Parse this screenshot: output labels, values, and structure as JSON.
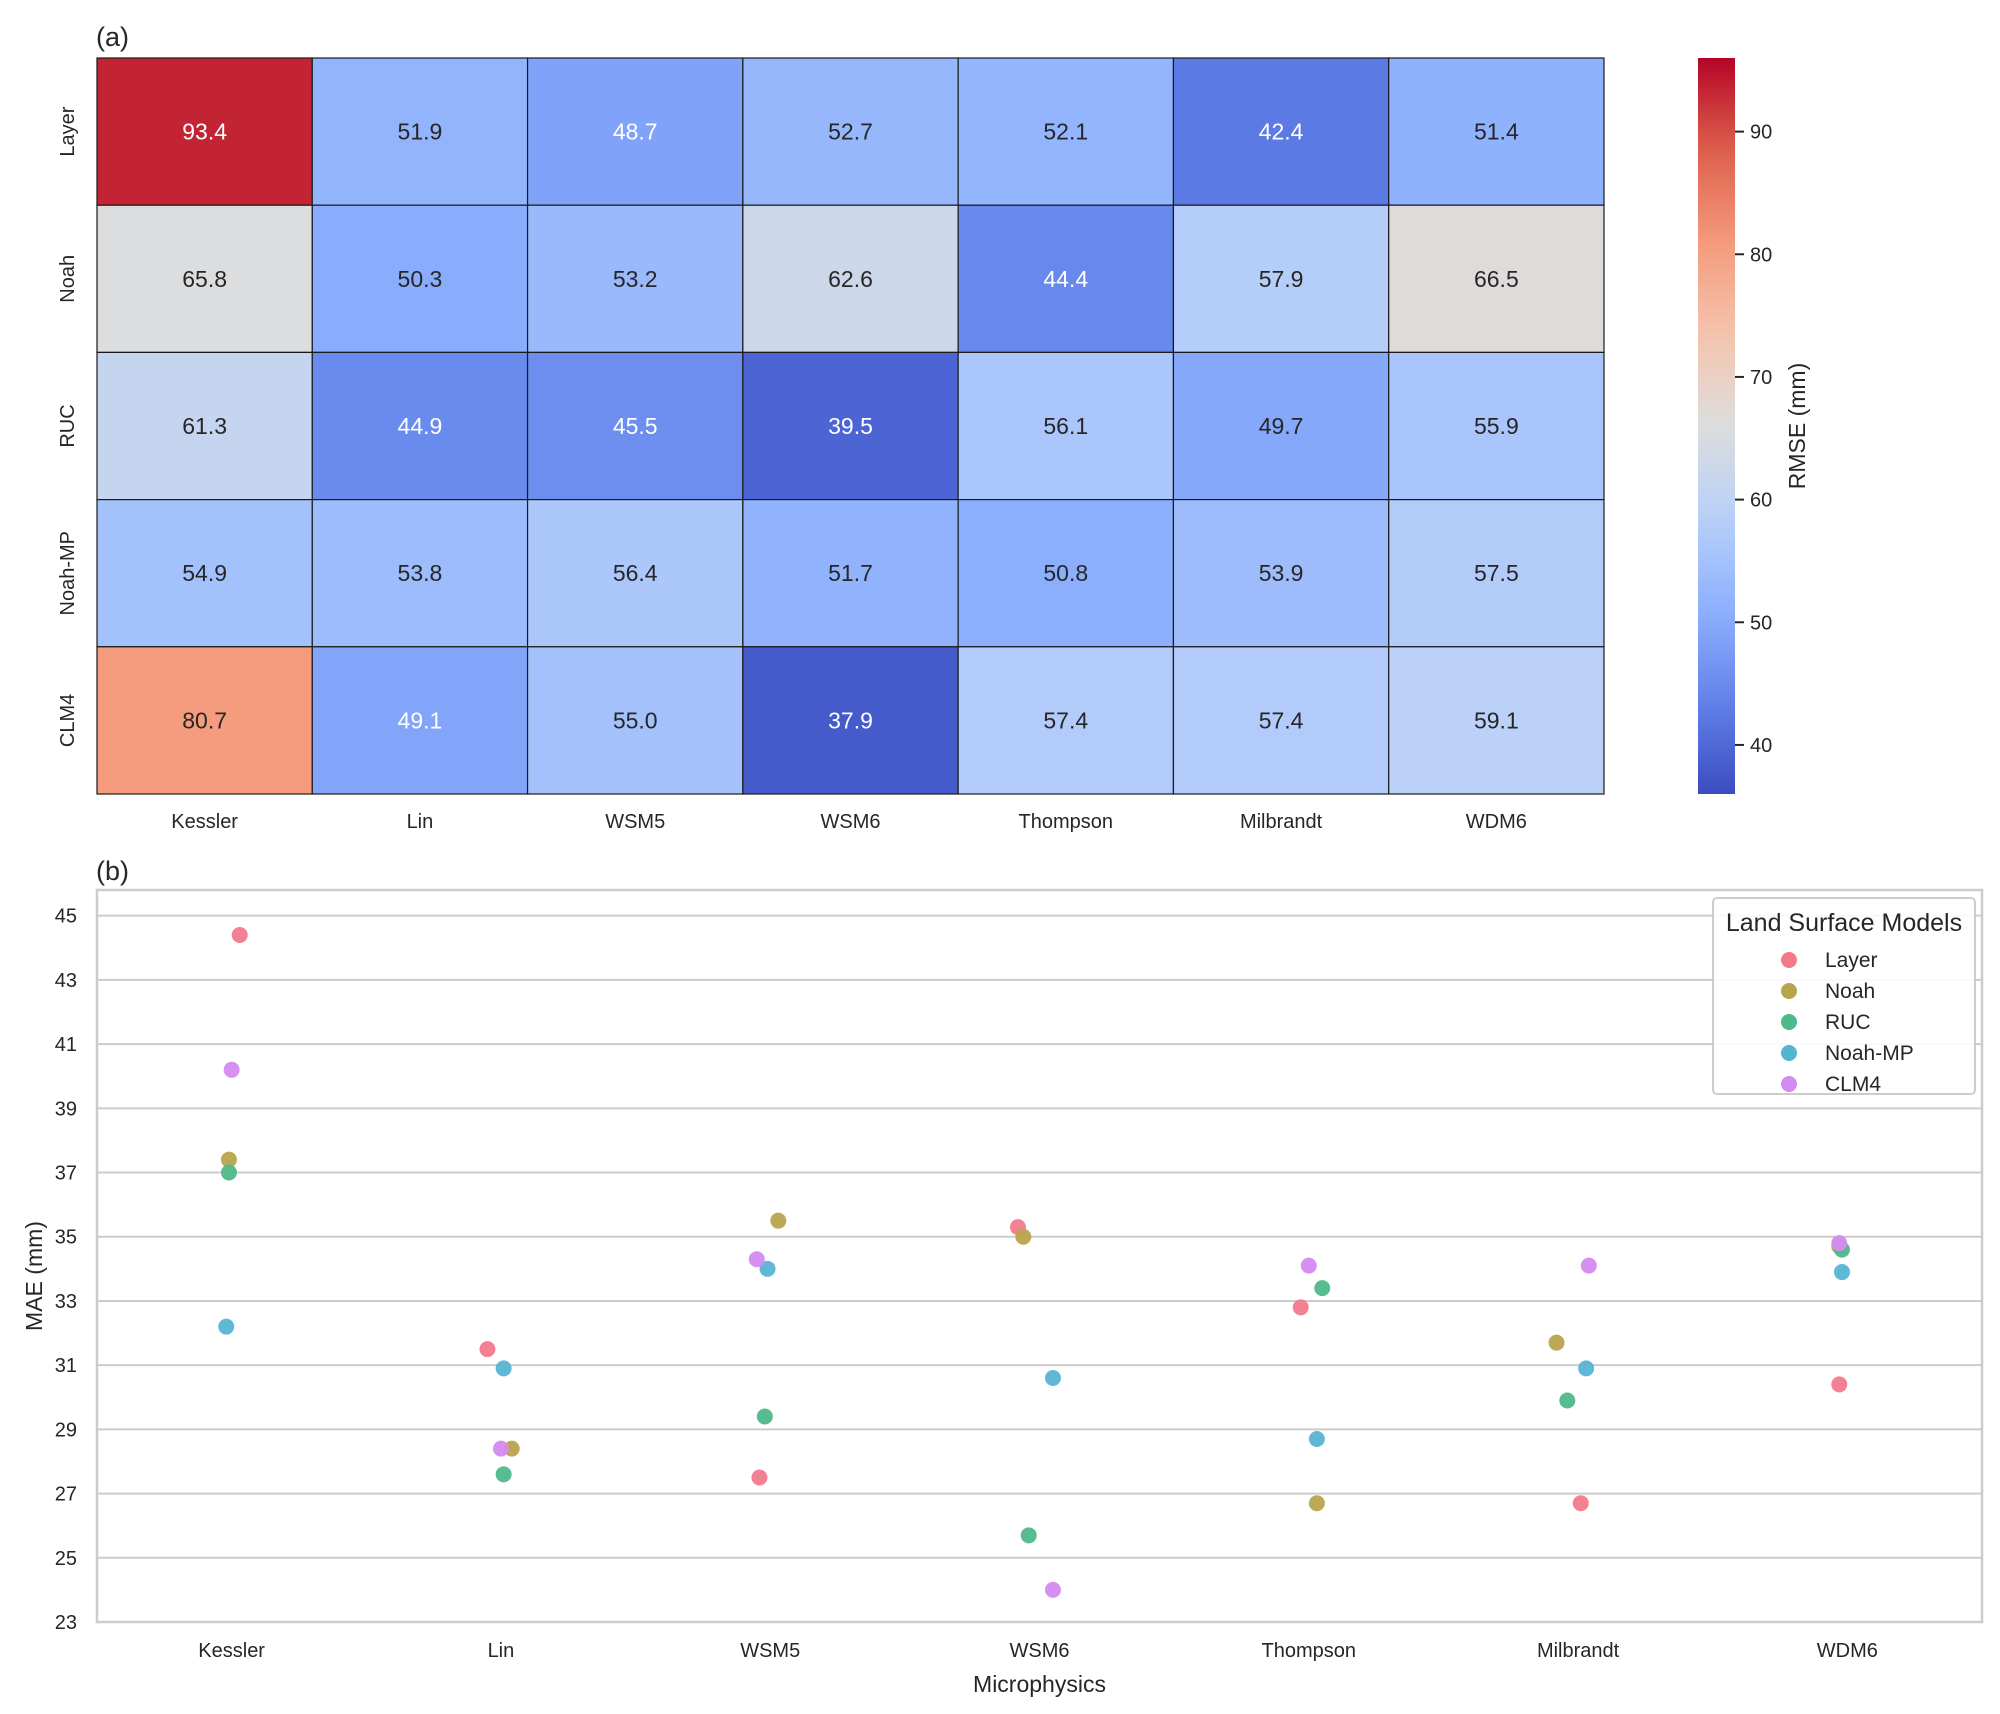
{
  "chart_data": [
    {
      "type": "heatmap",
      "panel_label": "(a)",
      "title": "",
      "xlabel": "",
      "ylabel": "",
      "columns": [
        "Kessler",
        "Lin",
        "WSM5",
        "WSM6",
        "Thompson",
        "Milbrandt",
        "WDM6"
      ],
      "rows": [
        "Layer",
        "Noah",
        "RUC",
        "Noah-MP",
        "CLM4"
      ],
      "values": [
        [
          93.4,
          51.9,
          48.7,
          52.7,
          52.1,
          42.4,
          51.4
        ],
        [
          65.8,
          50.3,
          53.2,
          62.6,
          44.4,
          57.9,
          66.5
        ],
        [
          61.3,
          44.9,
          45.5,
          39.5,
          56.1,
          49.7,
          55.9
        ],
        [
          54.9,
          53.8,
          56.4,
          51.7,
          50.8,
          53.9,
          57.5
        ],
        [
          80.7,
          49.1,
          55.0,
          37.9,
          57.4,
          57.4,
          59.1
        ]
      ],
      "colormap": "coolwarm",
      "colorbar": {
        "label": "RMSE (mm)",
        "range": [
          36,
          96
        ],
        "ticks": [
          40,
          50,
          60,
          70,
          80,
          90
        ]
      }
    },
    {
      "type": "scatter",
      "panel_label": "(b)",
      "title": "",
      "xlabel": "Microphysics",
      "ylabel": "MAE (mm)",
      "categories": [
        "Kessler",
        "Lin",
        "WSM5",
        "WSM6",
        "Thompson",
        "Milbrandt",
        "WDM6"
      ],
      "ylim": [
        23,
        45.8
      ],
      "yticks": [
        23,
        25,
        27,
        29,
        31,
        33,
        35,
        37,
        39,
        41,
        43,
        45
      ],
      "grid": true,
      "legend": {
        "title": "Land Surface Models",
        "placement": "top-right"
      },
      "series": [
        {
          "name": "Layer",
          "color": "#f37a8b",
          "values": [
            44.4,
            31.5,
            27.5,
            35.3,
            32.8,
            26.7,
            30.4
          ],
          "jitter": [
            0.03,
            -0.05,
            -0.04,
            -0.08,
            -0.03,
            0.01,
            -0.03
          ]
        },
        {
          "name": "Noah",
          "color": "#b9a44c",
          "values": [
            37.4,
            28.4,
            35.5,
            35.0,
            26.7,
            31.7,
            34.7
          ],
          "jitter": [
            -0.01,
            0.04,
            0.03,
            -0.06,
            0.03,
            -0.08,
            -0.03
          ]
        },
        {
          "name": "RUC",
          "color": "#4eb98b",
          "values": [
            37.0,
            27.6,
            29.4,
            25.7,
            33.4,
            29.9,
            34.6
          ],
          "jitter": [
            -0.01,
            0.01,
            -0.02,
            -0.04,
            0.05,
            -0.04,
            -0.02
          ]
        },
        {
          "name": "Noah-MP",
          "color": "#56b4d3",
          "values": [
            32.2,
            30.9,
            34.0,
            30.6,
            28.7,
            30.9,
            33.9
          ],
          "jitter": [
            -0.02,
            0.01,
            -0.01,
            0.05,
            0.03,
            0.03,
            -0.02
          ]
        },
        {
          "name": "CLM4",
          "color": "#d48af0",
          "values": [
            40.2,
            28.4,
            34.3,
            24.0,
            34.1,
            34.1,
            34.8
          ],
          "jitter": [
            0.0,
            0.0,
            -0.05,
            0.05,
            0.0,
            0.04,
            -0.03
          ]
        }
      ]
    }
  ]
}
